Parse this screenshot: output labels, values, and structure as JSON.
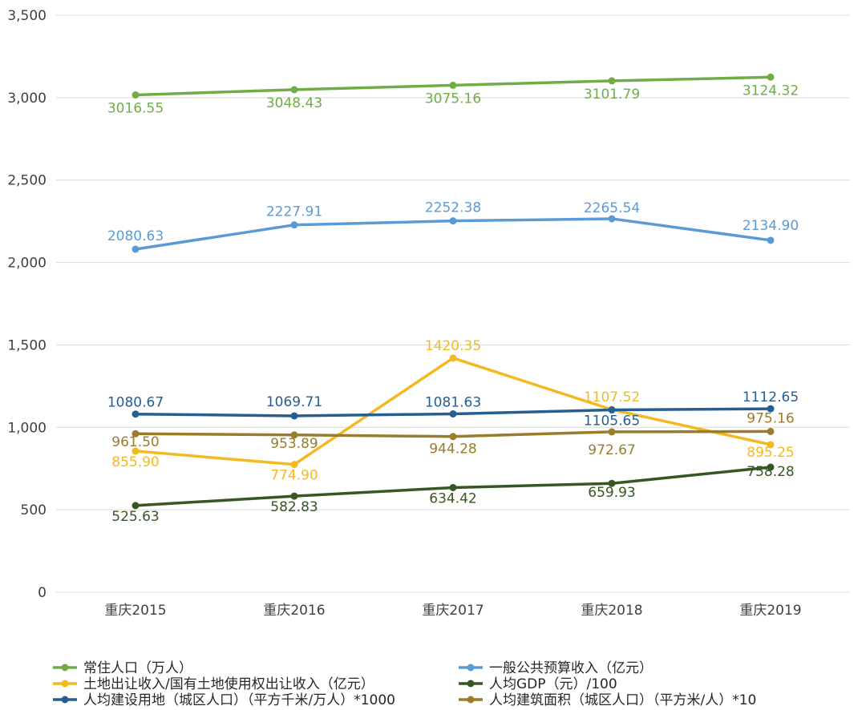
{
  "chart_data": {
    "type": "line",
    "categories": [
      "重庆2015",
      "重庆2016",
      "重庆2017",
      "重庆2018",
      "重庆2019"
    ],
    "ylim": [
      0,
      3500
    ],
    "yticks": [
      0,
      500,
      1000,
      1500,
      2000,
      2500,
      3000,
      3500
    ],
    "ytick_labels": [
      "0",
      "500",
      "1,000",
      "1,500",
      "2,000",
      "2,500",
      "3,000",
      "3,500"
    ],
    "grid": true,
    "legend_position": "bottom",
    "series": [
      {
        "name": "常住人口（万人）",
        "color": "#70ad47",
        "values": [
          3016.55,
          3048.43,
          3075.16,
          3101.79,
          3124.32
        ],
        "labels": [
          "3016.55",
          "3048.43",
          "3075.16",
          "3101.79",
          "3124.32"
        ]
      },
      {
        "name": "一般公共预算收入（亿元）",
        "color": "#5b9bd5",
        "values": [
          2080.63,
          2227.91,
          2252.38,
          2265.54,
          2134.9
        ],
        "labels": [
          "2080.63",
          "2227.91",
          "2252.38",
          "2265.54",
          "2134.90"
        ]
      },
      {
        "name": "土地出让收入/国有土地使用权出让收入（亿元）",
        "color": "#f2b921",
        "values": [
          855.9,
          774.9,
          1420.35,
          1107.52,
          895.25
        ],
        "labels": [
          "855.90",
          "774.90",
          "1420.35",
          "1107.52",
          "895.25"
        ]
      },
      {
        "name": "人均GDP（元）/100",
        "color": "#375623",
        "values": [
          525.63,
          582.83,
          634.42,
          659.93,
          758.28
        ],
        "labels": [
          "525.63",
          "582.83",
          "634.42",
          "659.93",
          "758.28"
        ]
      },
      {
        "name": "人均建设用地（城区人口）（平方千米/万人）*1000",
        "color": "#255e91",
        "values": [
          1080.67,
          1069.71,
          1081.63,
          1105.65,
          1112.65
        ],
        "labels": [
          "1080.67",
          "1069.71",
          "1081.63",
          "1105.65",
          "1112.65"
        ]
      },
      {
        "name": "人均建筑面积（城区人口）（平方米/人）*10",
        "color": "#9a7c2a",
        "values": [
          961.5,
          953.89,
          944.28,
          972.67,
          975.16
        ],
        "labels": [
          "961.50",
          "953.89",
          "944.28",
          "972.67",
          "975.16"
        ]
      }
    ]
  }
}
